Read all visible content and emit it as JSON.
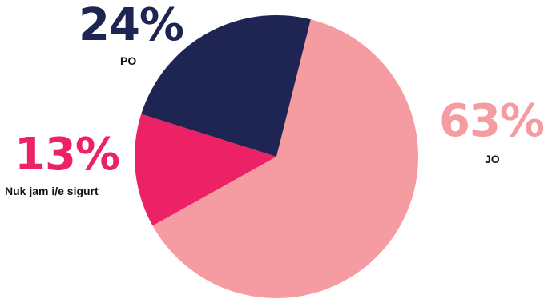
{
  "chart_data": {
    "type": "pie",
    "title": "",
    "slices": [
      {
        "label": "JO",
        "value": 63,
        "display": "63%",
        "color": "#f49ca1"
      },
      {
        "label": "Nuk jam i/e sigurt",
        "value": 13,
        "display": "13%",
        "color": "#ec2166"
      },
      {
        "label": "PO",
        "value": 24,
        "display": "24%",
        "color": "#1f2553"
      }
    ],
    "legend": "none (direct labels)"
  }
}
